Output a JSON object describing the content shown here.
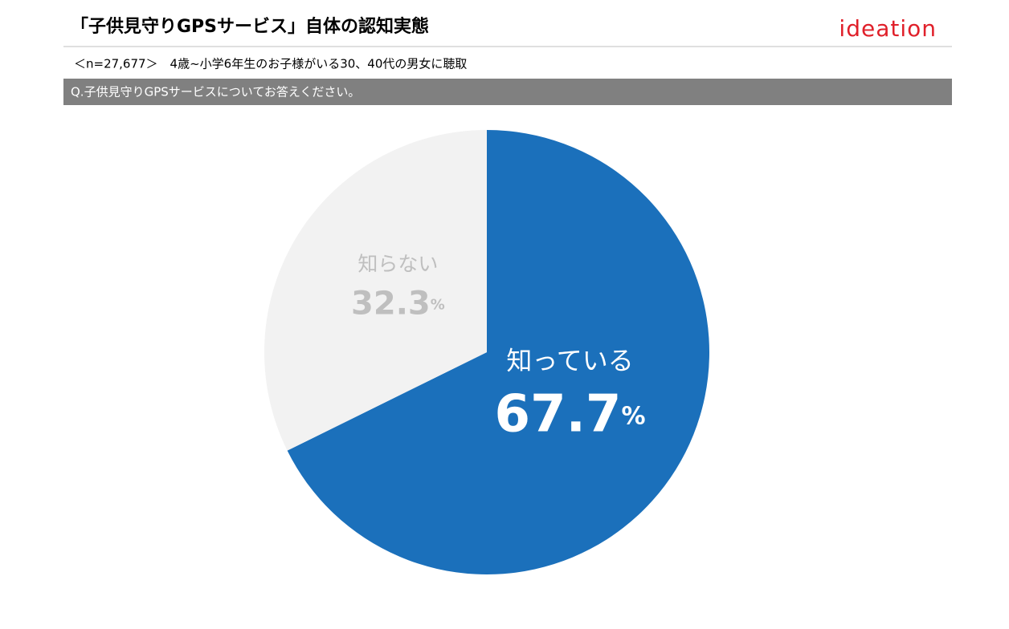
{
  "logo": "ideation",
  "chart_data": {
    "type": "pie",
    "title": "「子供見守りGPSサービス」自体の認知実態",
    "subtitle": "＜n=27,677＞　4歳~小学6年生のお子様がいる30、40代の男女に聴取",
    "question": "Q.子供見守りGPSサービスについてお答えください。",
    "categories": [
      "知っている",
      "知らない"
    ],
    "values": [
      67.7,
      32.3
    ],
    "value_unit": "%",
    "colors": [
      "#1b70bb",
      "#f2f2f2"
    ],
    "label_colors": [
      "#ffffff",
      "#bfbfbf"
    ]
  }
}
